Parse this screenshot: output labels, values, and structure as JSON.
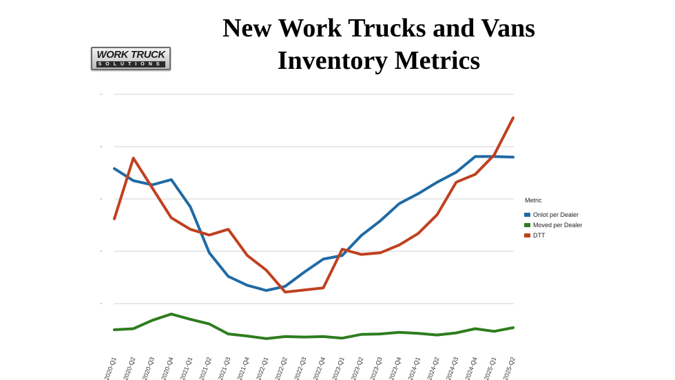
{
  "page": {
    "title_line1": "New Work Trucks and Vans",
    "title_line2": "Inventory Metrics",
    "logo_main": "WORK TRUCK",
    "logo_sub": "SOLUTIONS"
  },
  "chart_data": {
    "type": "line",
    "title": "New Work Trucks and Vans Inventory Metrics",
    "x": [
      "2020-Q1",
      "2020-Q2",
      "2020-Q3",
      "2020-Q4",
      "2021-Q1",
      "2021-Q2",
      "2021-Q3",
      "2021-Q4",
      "2022-Q1",
      "2022-Q2",
      "2022-Q3",
      "2022-Q4",
      "2023-Q1",
      "2023-Q2",
      "2023-Q3",
      "2023-Q4",
      "2024-Q1",
      "2024-Q2",
      "2024-Q3",
      "2024-Q4",
      "2025-Q1",
      "2025-Q2"
    ],
    "ylim": [
      0,
      5
    ],
    "y_tick_labels_visible": false,
    "grid": true,
    "legend_title": "Metric",
    "legend_position": "right",
    "series": [
      {
        "name": "Onlot per Dealer",
        "color": "#1f6aa5",
        "values": [
          2.58,
          2.35,
          2.27,
          2.37,
          1.85,
          0.97,
          0.52,
          0.35,
          0.25,
          0.33,
          0.6,
          0.85,
          0.92,
          1.3,
          1.58,
          1.91,
          2.1,
          2.32,
          2.51,
          2.81,
          2.81,
          2.8
        ]
      },
      {
        "name": "Moved per Dealer",
        "color": "#2e7d1e",
        "values": [
          -0.5,
          -0.48,
          -0.32,
          -0.2,
          -0.3,
          -0.39,
          -0.58,
          -0.62,
          -0.67,
          -0.63,
          -0.64,
          -0.63,
          -0.66,
          -0.59,
          -0.58,
          -0.55,
          -0.57,
          -0.6,
          -0.56,
          -0.48,
          -0.53,
          -0.46
        ]
      },
      {
        "name": "DTT",
        "color": "#c0401f",
        "values": [
          1.62,
          2.78,
          2.21,
          1.64,
          1.42,
          1.31,
          1.42,
          0.92,
          0.64,
          0.22,
          0.26,
          0.3,
          1.04,
          0.94,
          0.97,
          1.12,
          1.34,
          1.7,
          2.32,
          2.47,
          2.84,
          3.55
        ]
      }
    ]
  }
}
